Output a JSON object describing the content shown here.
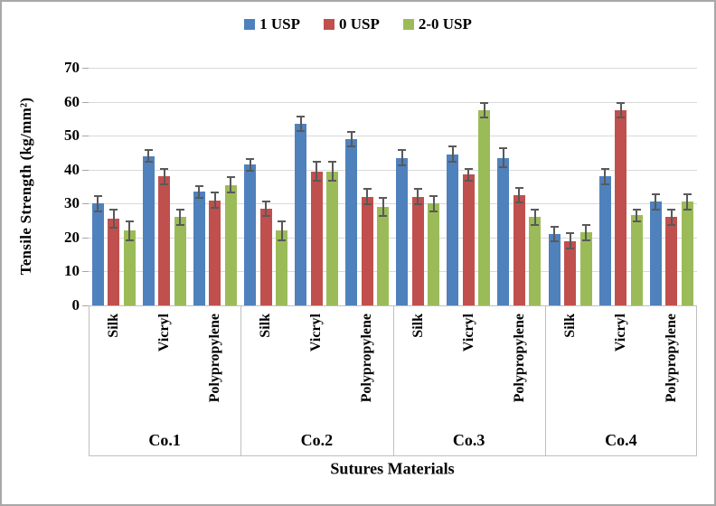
{
  "chart_data": {
    "type": "bar",
    "title": "",
    "xlabel": "Sutures Materials",
    "ylabel": "Tensile Strength (kg/mm²)",
    "ylim": [
      0,
      70
    ],
    "ytick_step": 10,
    "yticks": [
      0,
      10,
      20,
      30,
      40,
      50,
      60,
      70
    ],
    "grid": true,
    "legend_position": "top-center",
    "groups": [
      "Co.1",
      "Co.2",
      "Co.3",
      "Co.4"
    ],
    "categories": [
      "Silk",
      "Vicryl",
      "Polypropylene"
    ],
    "series": [
      {
        "name": "1 USP",
        "color": "#4F81BD",
        "values": [
          [
            30,
            44,
            33.5
          ],
          [
            41.5,
            53.5,
            49
          ],
          [
            43.5,
            44.5,
            43.5
          ],
          [
            21,
            38,
            30.5
          ]
        ],
        "errors": [
          [
            2.5,
            2,
            2
          ],
          [
            2,
            2.5,
            2.5
          ],
          [
            2.5,
            2.5,
            3
          ],
          [
            2.5,
            2.5,
            2.5
          ]
        ]
      },
      {
        "name": "0 USP",
        "color": "#C0504D",
        "values": [
          [
            25.5,
            38,
            31
          ],
          [
            28.5,
            39.5,
            32
          ],
          [
            32,
            38.5,
            32.5
          ],
          [
            19,
            57.5,
            26
          ]
        ],
        "errors": [
          [
            3,
            2.5,
            2.5
          ],
          [
            2.5,
            3,
            2.5
          ],
          [
            2.5,
            2,
            2.5
          ],
          [
            2.5,
            2.5,
            2.5
          ]
        ]
      },
      {
        "name": "2-0 USP",
        "color": "#9BBB59",
        "values": [
          [
            22,
            26,
            35.5
          ],
          [
            22,
            39.5,
            29
          ],
          [
            30,
            57.5,
            26
          ],
          [
            21.5,
            26.5,
            30.5
          ]
        ],
        "errors": [
          [
            3,
            2.5,
            2.5
          ],
          [
            3,
            3,
            3
          ],
          [
            2.5,
            2.5,
            2.5
          ],
          [
            2.5,
            2,
            2.5
          ]
        ]
      }
    ],
    "error_bar_color": "#595959",
    "gridline_color": "#D9D9D9",
    "axis_box_color": "#BFBFBF"
  }
}
